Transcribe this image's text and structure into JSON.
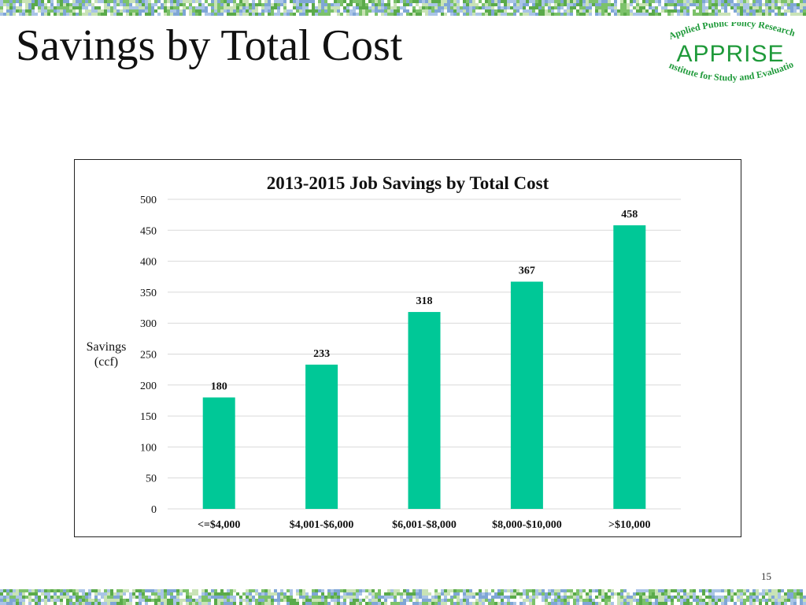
{
  "slide": {
    "title": "Savings by Total Cost",
    "page_number": "15"
  },
  "logo": {
    "name": "APPRISE",
    "top_text": "Applied Public Policy Research",
    "bottom_text": "Institute for Study and Evaluation",
    "color": "#1f9a3a"
  },
  "colors": {
    "bar": "#00c897",
    "grid": "#d9d9d9",
    "band_green": "#7cc26a",
    "band_blue": "#7fa6d6"
  },
  "chart_data": {
    "type": "bar",
    "title": "2013-2015 Job Savings by Total Cost",
    "xlabel": "",
    "ylabel_lines": [
      "Savings",
      "(ccf)"
    ],
    "categories": [
      "<=$4,000",
      "$4,001-$6,000",
      "$6,001-$8,000",
      "$8,000-$10,000",
      ">$10,000"
    ],
    "values": [
      180,
      233,
      318,
      367,
      458
    ],
    "ylim": [
      0,
      500
    ],
    "yticks": [
      0,
      50,
      100,
      150,
      200,
      250,
      300,
      350,
      400,
      450,
      500
    ],
    "grid": true,
    "data_labels": true
  }
}
